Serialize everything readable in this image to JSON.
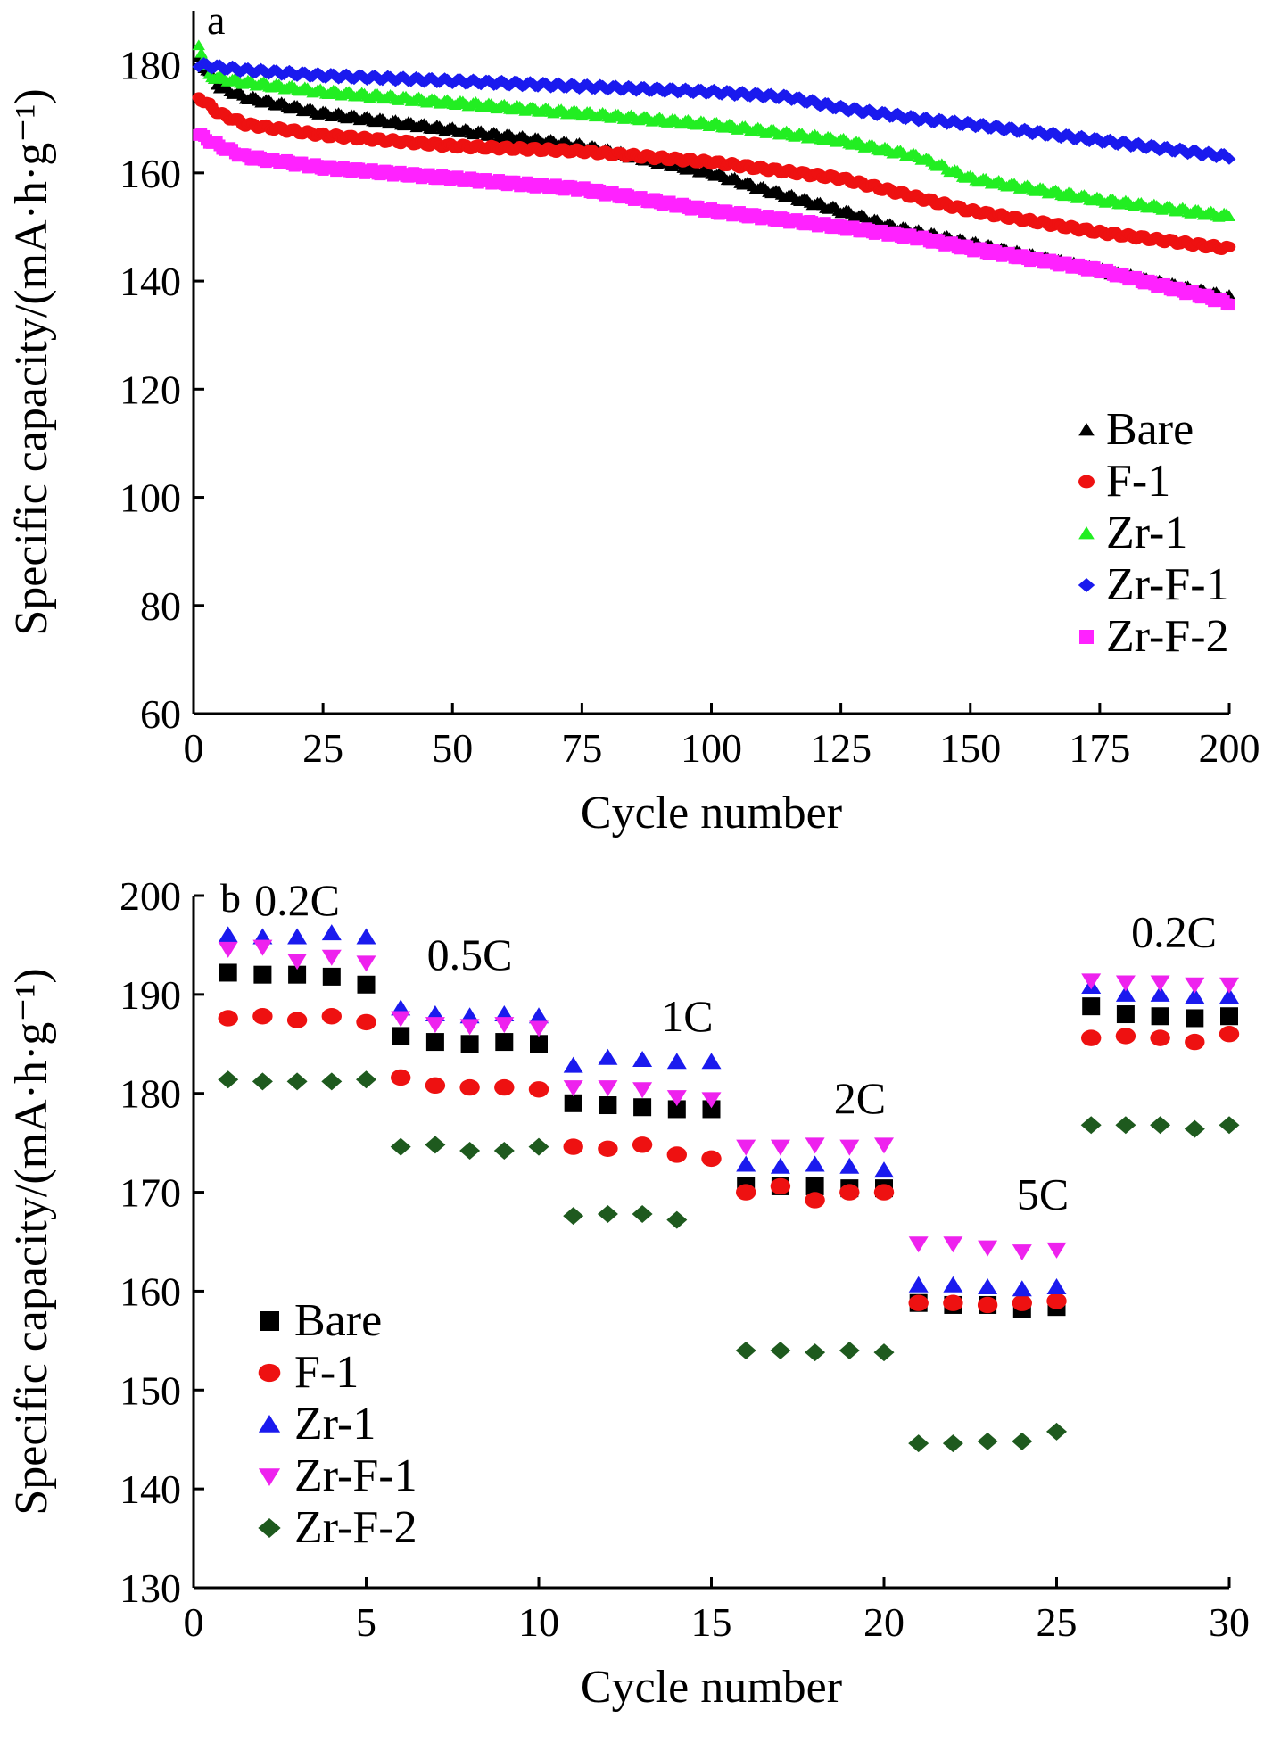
{
  "chart_data": [
    {
      "type": "scatter",
      "panel_label": "a",
      "xlabel": "Cycle number",
      "ylabel": "Specific capacity/(mA·h·g⁻¹)",
      "xlim": [
        0,
        200
      ],
      "ylim": [
        60,
        190
      ],
      "xticks": [
        0,
        25,
        50,
        75,
        100,
        125,
        150,
        175,
        200
      ],
      "yticks": [
        60,
        80,
        100,
        120,
        140,
        160,
        180
      ],
      "grid": false,
      "legend_position": "bottom-right",
      "series": [
        {
          "name": "Bare",
          "color": "#000000",
          "marker": "triangle-up",
          "x": [
            1,
            5,
            10,
            25,
            50,
            75,
            90,
            100,
            110,
            125,
            135,
            150,
            175,
            190,
            200
          ],
          "y": [
            181,
            176,
            174,
            171,
            168,
            165,
            162,
            160,
            157,
            153,
            150,
            147,
            142,
            139,
            137
          ]
        },
        {
          "name": "F-1",
          "color": "#ee1111",
          "marker": "circle",
          "x": [
            1,
            5,
            10,
            25,
            50,
            75,
            100,
            125,
            150,
            175,
            200
          ],
          "y": [
            174,
            171,
            169,
            167,
            165,
            164,
            162,
            159,
            153,
            149,
            146
          ]
        },
        {
          "name": "Zr-1",
          "color": "#22ee22",
          "marker": "triangle-up",
          "x": [
            1,
            3,
            8,
            25,
            50,
            75,
            100,
            125,
            140,
            150,
            175,
            200
          ],
          "y": [
            184,
            178,
            177,
            175,
            173,
            171,
            169,
            166,
            163,
            159,
            155,
            152
          ]
        },
        {
          "name": "Zr-F-1",
          "color": "#1a1aee",
          "marker": "diamond",
          "x": [
            1,
            10,
            25,
            50,
            75,
            100,
            115,
            125,
            140,
            150,
            175,
            200
          ],
          "y": [
            180,
            179,
            178,
            177,
            176,
            175,
            174,
            172,
            170,
            169,
            166,
            163
          ]
        },
        {
          "name": "Zr-F-2",
          "color": "#ff22ff",
          "marker": "square",
          "x": [
            1,
            5,
            10,
            25,
            50,
            75,
            100,
            125,
            140,
            150,
            175,
            200
          ],
          "y": [
            167,
            165,
            163,
            161,
            159,
            157,
            153,
            150,
            148,
            146,
            142,
            136
          ]
        }
      ]
    },
    {
      "type": "scatter",
      "panel_label": "b",
      "xlabel": "Cycle number",
      "ylabel": "Specific capacity/(mA·h·g⁻¹)",
      "xlim": [
        0,
        30
      ],
      "ylim": [
        130,
        200
      ],
      "xticks": [
        0,
        5,
        10,
        15,
        20,
        25,
        30
      ],
      "yticks": [
        130,
        140,
        150,
        160,
        170,
        180,
        190,
        200
      ],
      "grid": false,
      "legend_position": "bottom-left",
      "annotations": [
        {
          "text": "0.2C",
          "x": 3,
          "y": 198
        },
        {
          "text": "0.5C",
          "x": 8,
          "y": 192.5
        },
        {
          "text": "1C",
          "x": 14.3,
          "y": 186.3
        },
        {
          "text": "2C",
          "x": 19.3,
          "y": 178
        },
        {
          "text": "5C",
          "x": 24.6,
          "y": 168.3
        },
        {
          "text": "0.2C",
          "x": 28.4,
          "y": 194.8
        }
      ],
      "series": [
        {
          "name": "Bare",
          "color": "#000000",
          "marker": "square",
          "x": [
            1,
            2,
            3,
            4,
            5,
            6,
            7,
            8,
            9,
            10,
            11,
            12,
            13,
            14,
            15,
            16,
            17,
            18,
            19,
            20,
            21,
            22,
            23,
            24,
            25,
            26,
            27,
            28,
            29,
            30
          ],
          "y": [
            192.2,
            192.0,
            192.0,
            191.8,
            191.0,
            185.8,
            185.2,
            185.0,
            185.2,
            185.0,
            179.0,
            178.8,
            178.6,
            178.4,
            178.4,
            170.6,
            170.6,
            170.6,
            170.4,
            170.4,
            158.8,
            158.6,
            158.6,
            158.2,
            158.4,
            188.8,
            188.0,
            187.8,
            187.6,
            187.8
          ]
        },
        {
          "name": "F-1",
          "color": "#ee1111",
          "marker": "circle",
          "x": [
            1,
            2,
            3,
            4,
            5,
            6,
            7,
            8,
            9,
            10,
            11,
            12,
            13,
            14,
            15,
            16,
            17,
            18,
            19,
            20,
            21,
            22,
            23,
            24,
            25,
            26,
            27,
            28,
            29,
            30
          ],
          "y": [
            187.6,
            187.8,
            187.4,
            187.8,
            187.2,
            181.6,
            180.8,
            180.6,
            180.6,
            180.4,
            174.6,
            174.4,
            174.8,
            173.8,
            173.4,
            170.0,
            170.6,
            169.2,
            170.0,
            170.0,
            158.8,
            158.8,
            158.6,
            158.8,
            159.0,
            185.6,
            185.8,
            185.6,
            185.2,
            186.0
          ]
        },
        {
          "name": "Zr-1",
          "color": "#1a1aee",
          "marker": "triangle-up",
          "x": [
            1,
            2,
            3,
            4,
            5,
            6,
            7,
            8,
            9,
            10,
            11,
            12,
            13,
            14,
            15,
            16,
            17,
            18,
            19,
            20,
            21,
            22,
            23,
            24,
            25,
            26,
            27,
            28,
            29,
            30
          ],
          "y": [
            196.0,
            195.8,
            195.8,
            196.2,
            195.8,
            188.6,
            188.0,
            187.8,
            188.0,
            187.8,
            182.8,
            183.6,
            183.4,
            183.2,
            183.2,
            172.8,
            172.6,
            172.8,
            172.6,
            172.2,
            160.6,
            160.6,
            160.4,
            160.2,
            160.4,
            190.8,
            190.0,
            190.0,
            189.8,
            189.8
          ]
        },
        {
          "name": "Zr-F-1",
          "color": "#ee22ee",
          "marker": "triangle-down",
          "x": [
            1,
            2,
            3,
            4,
            5,
            6,
            7,
            8,
            9,
            10,
            11,
            12,
            13,
            14,
            15,
            16,
            17,
            18,
            19,
            20,
            21,
            22,
            23,
            24,
            25,
            26,
            27,
            28,
            29,
            30
          ],
          "y": [
            194.6,
            194.8,
            193.4,
            193.8,
            193.2,
            187.6,
            187.0,
            186.8,
            187.0,
            186.6,
            180.6,
            180.6,
            180.4,
            179.6,
            179.4,
            174.6,
            174.6,
            174.8,
            174.6,
            174.8,
            164.8,
            164.8,
            164.4,
            164.0,
            164.2,
            191.4,
            191.2,
            191.2,
            191.0,
            191.0
          ]
        },
        {
          "name": "Zr-F-2",
          "color": "#1e5a1e",
          "marker": "diamond",
          "x": [
            1,
            2,
            3,
            4,
            5,
            6,
            7,
            8,
            9,
            10,
            11,
            12,
            13,
            14,
            16,
            17,
            18,
            19,
            20,
            21,
            22,
            23,
            24,
            25,
            26,
            27,
            28,
            29,
            30
          ],
          "y": [
            181.4,
            181.2,
            181.2,
            181.2,
            181.4,
            174.6,
            174.8,
            174.2,
            174.2,
            174.6,
            167.6,
            167.8,
            167.8,
            167.2,
            154.0,
            154.0,
            153.8,
            154.0,
            153.8,
            144.6,
            144.6,
            144.8,
            144.8,
            145.8,
            176.8,
            176.8,
            176.8,
            176.4,
            176.8
          ]
        }
      ]
    }
  ]
}
